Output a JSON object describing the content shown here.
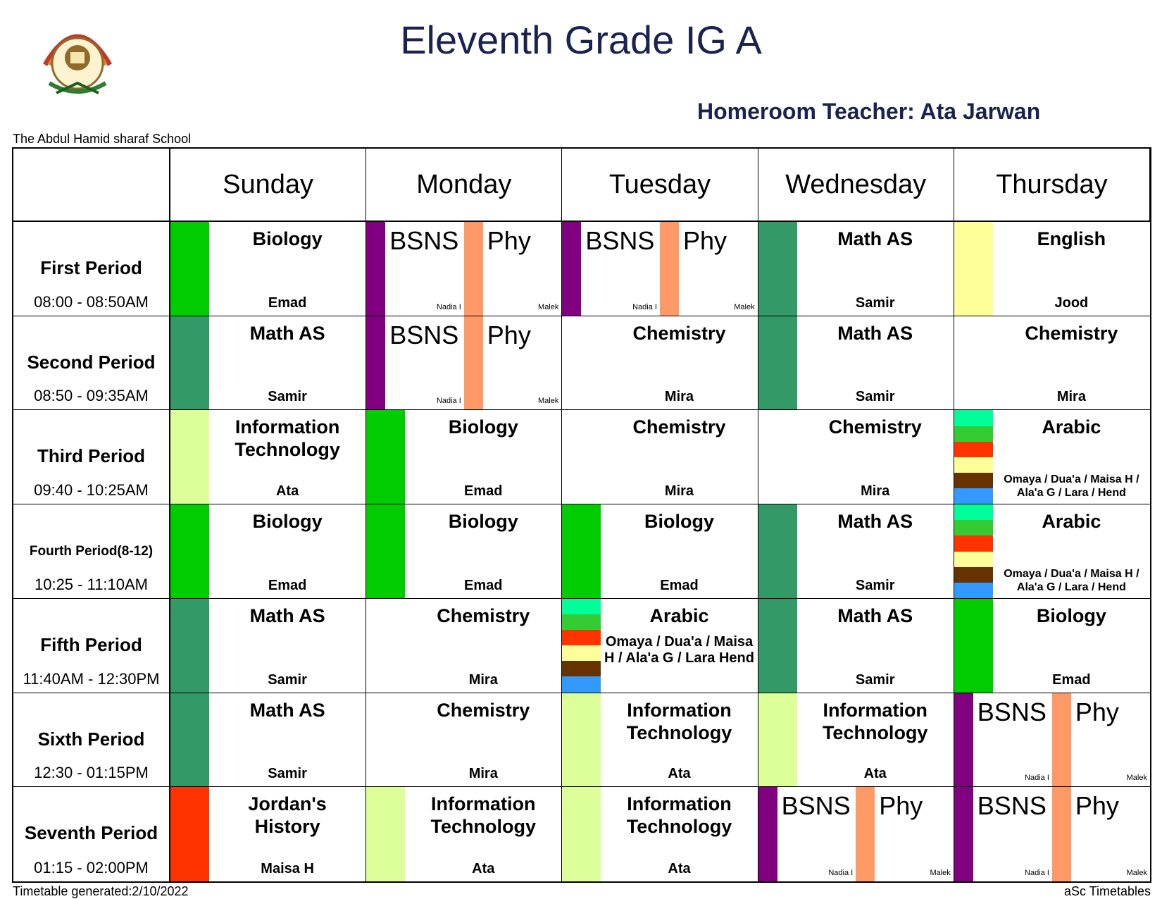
{
  "header": {
    "title": "Eleventh Grade IG A",
    "homeroom": "Homeroom Teacher: Ata Jarwan",
    "school": "The Abdul Hamid sharaf School"
  },
  "footer": {
    "generated": "Timetable generated:2/10/2022",
    "brand": "aSc Timetables"
  },
  "colors": {
    "biology": "#00cc00",
    "math": "#339966",
    "bsns": "#800080",
    "phy": "#ff9966",
    "english": "#ffff99",
    "it": "#ddff99",
    "history": "#ff3300",
    "arabic_stack": [
      "#00ff99",
      "#33cc33",
      "#ff3300",
      "#ffff99",
      "#663300",
      "#3399ff"
    ]
  },
  "days": [
    "Sunday",
    "Monday",
    "Tuesday",
    "Wednesday",
    "Thursday"
  ],
  "periods": [
    {
      "name": "First Period",
      "time": "08:00 - 08:50AM"
    },
    {
      "name": "Second Period",
      "time": "08:50 - 09:35AM"
    },
    {
      "name": "Third Period",
      "time": "09:40 - 10:25AM"
    },
    {
      "name": "Fourth Period(8-12)",
      "time": "10:25 - 11:10AM"
    },
    {
      "name": "Fifth Period",
      "time": "11:40AM - 12:30PM"
    },
    {
      "name": "Sixth Period",
      "time": "12:30 - 01:15PM"
    },
    {
      "name": "Seventh Period",
      "time": "01:15 - 02:00PM"
    }
  ],
  "split": {
    "left_subject": "BSNS",
    "left_teacher": "Nadia I",
    "right_subject": "Phy",
    "right_teacher": "Malek"
  },
  "arabic_teachers_short": "Omaya / Dua'a / Maisa H / Ala'a G / Lara / Hend",
  "arabic_teachers_long": "Omaya / Dua'a / Maisa H / Ala'a G / Lara Hend",
  "lessons": {
    "biology": {
      "subject": "Biology",
      "teacher": "Emad"
    },
    "math": {
      "subject": "Math AS",
      "teacher": "Samir"
    },
    "english": {
      "subject": "English",
      "teacher": "Jood"
    },
    "chemistry": {
      "subject": "Chemistry",
      "teacher": "Mira"
    },
    "it": {
      "subject": "Information Technology",
      "teacher": "Ata"
    },
    "arabic": {
      "subject": "Arabic"
    },
    "history": {
      "subject": "Jordan's History",
      "teacher": "Maisa H"
    }
  }
}
